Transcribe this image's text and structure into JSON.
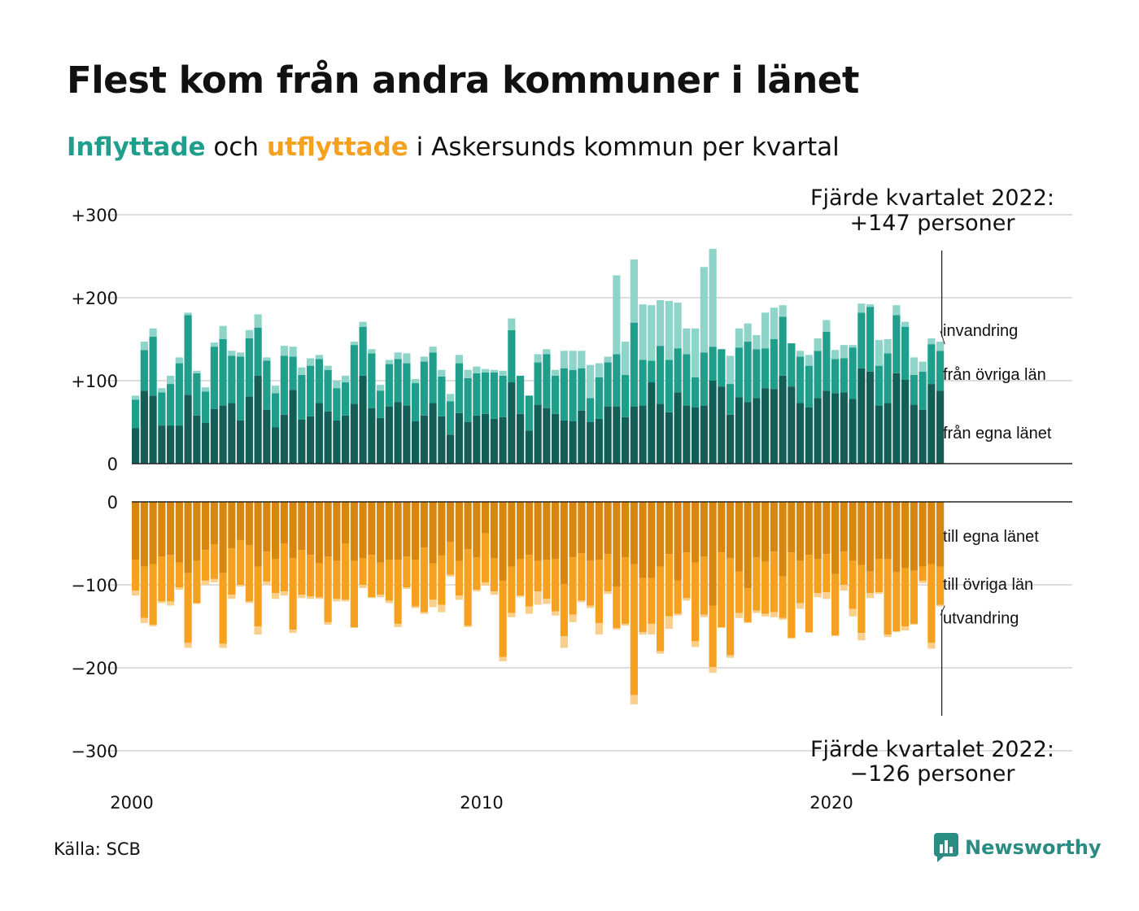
{
  "title": "Flest kom från andra kommuner i länet",
  "subtitle": {
    "in_word": "Inflyttade",
    "mid1": " och ",
    "out_word": "utflyttade",
    "rest": " i Askersunds kommun per kvartal"
  },
  "source": "Källa: SCB",
  "brand": "Newsworthy",
  "colors": {
    "in_own": "#135f58",
    "in_other": "#1f9e8c",
    "in_immig": "#8fd4c9",
    "out_own": "#d7860f",
    "out_other": "#f5a01f",
    "out_emig": "#f9cf8b",
    "grid": "#dddddd",
    "brand": "#2b8c82"
  },
  "chart_data": {
    "type": "bar",
    "stacked": true,
    "x_start": "2000 Q1",
    "x_ticks": [
      "2000",
      "2010",
      "2020"
    ],
    "y_ticks_top": [
      "+300",
      "+200",
      "+100",
      "0"
    ],
    "y_ticks_bottom": [
      "0",
      "−100",
      "−200",
      "−300"
    ],
    "ylim_top": [
      0,
      300
    ],
    "ylim_bottom": [
      -300,
      0
    ],
    "grid": true,
    "inflow_series": [
      {
        "name": "från egna länet",
        "values": [
          43,
          88,
          82,
          46,
          46,
          46,
          83,
          58,
          49,
          66,
          70,
          73,
          52,
          81,
          106,
          65,
          44,
          59,
          89,
          53,
          57,
          73,
          63,
          52,
          58,
          72,
          106,
          67,
          55,
          69,
          74,
          70,
          51,
          58,
          73,
          57,
          35,
          61,
          50,
          58,
          60,
          54,
          56,
          98,
          60,
          40,
          71,
          67,
          60,
          52,
          51,
          64,
          50,
          54,
          69,
          69,
          56,
          69,
          70,
          98,
          72,
          62,
          86,
          70,
          68,
          70,
          100,
          93,
          59,
          80,
          74,
          79,
          91,
          90,
          106,
          93,
          73,
          68,
          79,
          88,
          85,
          86,
          78,
          115,
          111,
          70,
          73,
          109,
          101,
          71,
          65,
          96,
          88
        ]
      },
      {
        "name": "från övriga län",
        "values": [
          34,
          49,
          71,
          40,
          50,
          75,
          96,
          51,
          38,
          75,
          80,
          57,
          77,
          70,
          58,
          59,
          41,
          71,
          40,
          54,
          61,
          53,
          50,
          39,
          40,
          71,
          59,
          66,
          33,
          51,
          52,
          51,
          46,
          65,
          61,
          48,
          40,
          60,
          53,
          51,
          50,
          56,
          50,
          63,
          46,
          42,
          51,
          65,
          46,
          63,
          62,
          51,
          29,
          50,
          53,
          63,
          51,
          101,
          55,
          26,
          70,
          63,
          53,
          62,
          36,
          64,
          41,
          45,
          37,
          60,
          73,
          59,
          48,
          60,
          71,
          52,
          56,
          50,
          57,
          71,
          41,
          41,
          62,
          67,
          78,
          48,
          60,
          70,
          64,
          36,
          46,
          48,
          48
        ]
      },
      {
        "name": "invandring",
        "values": [
          5,
          10,
          10,
          5,
          10,
          7,
          3,
          3,
          5,
          5,
          16,
          6,
          5,
          10,
          16,
          4,
          9,
          12,
          12,
          9,
          9,
          5,
          5,
          9,
          8,
          4,
          6,
          5,
          7,
          5,
          8,
          12,
          5,
          6,
          7,
          8,
          9,
          10,
          10,
          8,
          4,
          3,
          6,
          14,
          0,
          0,
          10,
          6,
          7,
          21,
          23,
          21,
          40,
          17,
          7,
          95,
          40,
          76,
          67,
          67,
          55,
          71,
          55,
          31,
          59,
          103,
          118,
          0,
          34,
          23,
          22,
          17,
          43,
          38,
          14,
          0,
          7,
          13,
          15,
          14,
          11,
          16,
          3,
          11,
          3,
          31,
          17,
          12,
          6,
          21,
          12,
          7,
          11
        ]
      }
    ],
    "outflow_series": [
      {
        "name": "till egna länet",
        "values": [
          -70,
          -78,
          -75,
          -66,
          -64,
          -73,
          -86,
          -71,
          -58,
          -51,
          -86,
          -56,
          -46,
          -52,
          -78,
          -60,
          -69,
          -50,
          -68,
          -58,
          -64,
          -74,
          -66,
          -71,
          -50,
          -71,
          -68,
          -64,
          -73,
          -70,
          -70,
          -66,
          -70,
          -55,
          -74,
          -65,
          -48,
          -71,
          -57,
          -67,
          -38,
          -68,
          -95,
          -78,
          -69,
          -64,
          -71,
          -70,
          -69,
          -99,
          -67,
          -62,
          -71,
          -70,
          -63,
          -102,
          -67,
          -75,
          -92,
          -92,
          -78,
          -63,
          -95,
          -61,
          -73,
          -66,
          -125,
          -61,
          -68,
          -84,
          -104,
          -67,
          -72,
          -60,
          -90,
          -61,
          -71,
          -64,
          -69,
          -63,
          -87,
          -60,
          -71,
          -76,
          -84,
          -69,
          -69,
          -85,
          -80,
          -83,
          -78,
          -75,
          -78
        ]
      },
      {
        "name": "till övriga län",
        "values": [
          -37,
          -62,
          -73,
          -54,
          -56,
          -30,
          -84,
          -51,
          -37,
          -42,
          -85,
          -56,
          -54,
          -68,
          -72,
          -36,
          -41,
          -58,
          -86,
          -54,
          -50,
          -41,
          -79,
          -46,
          -68,
          -80,
          -32,
          -51,
          -39,
          -49,
          -77,
          -37,
          -56,
          -78,
          -44,
          -59,
          -40,
          -42,
          -92,
          -39,
          -59,
          -40,
          -92,
          -56,
          -44,
          -62,
          -37,
          -47,
          -63,
          -63,
          -69,
          -57,
          -54,
          -76,
          -45,
          -50,
          -80,
          -158,
          -65,
          -55,
          -102,
          -75,
          -40,
          -55,
          -95,
          -70,
          -74,
          -90,
          -117,
          -50,
          -41,
          -64,
          -63,
          -73,
          -50,
          -103,
          -51,
          -93,
          -41,
          -46,
          -74,
          -40,
          -58,
          -82,
          -26,
          -40,
          -91,
          -71,
          -70,
          -64,
          -17,
          -95,
          -46
        ]
      },
      {
        "name": "utvandring",
        "values": [
          -6,
          -6,
          -2,
          -2,
          -5,
          -3,
          -6,
          -1,
          -5,
          -4,
          -5,
          -5,
          -2,
          -2,
          -10,
          -4,
          -7,
          -5,
          -4,
          -4,
          -3,
          -2,
          -3,
          -3,
          -2,
          -1,
          -4,
          -1,
          -3,
          -3,
          -4,
          -2,
          -2,
          -2,
          -9,
          -9,
          -2,
          -5,
          -2,
          -2,
          -4,
          -4,
          -5,
          -5,
          -2,
          -9,
          -16,
          -6,
          -5,
          -14,
          -9,
          -2,
          -3,
          -14,
          -3,
          -2,
          -2,
          -11,
          -3,
          -13,
          -3,
          -15,
          -2,
          -3,
          -7,
          -3,
          -7,
          -1,
          -3,
          -6,
          -1,
          -3,
          -3,
          -6,
          -2,
          -1,
          -7,
          -1,
          -5,
          -8,
          -1,
          -7,
          -9,
          -9,
          -6,
          -2,
          -3,
          -1,
          -5,
          -1,
          -3,
          -7,
          -2
        ]
      }
    ],
    "annotation_top": [
      "Fjärde kvartalet 2022:",
      "+147 personer"
    ],
    "annotation_bottom": [
      "Fjärde kvartalet 2022:",
      "−126 personer"
    ]
  }
}
